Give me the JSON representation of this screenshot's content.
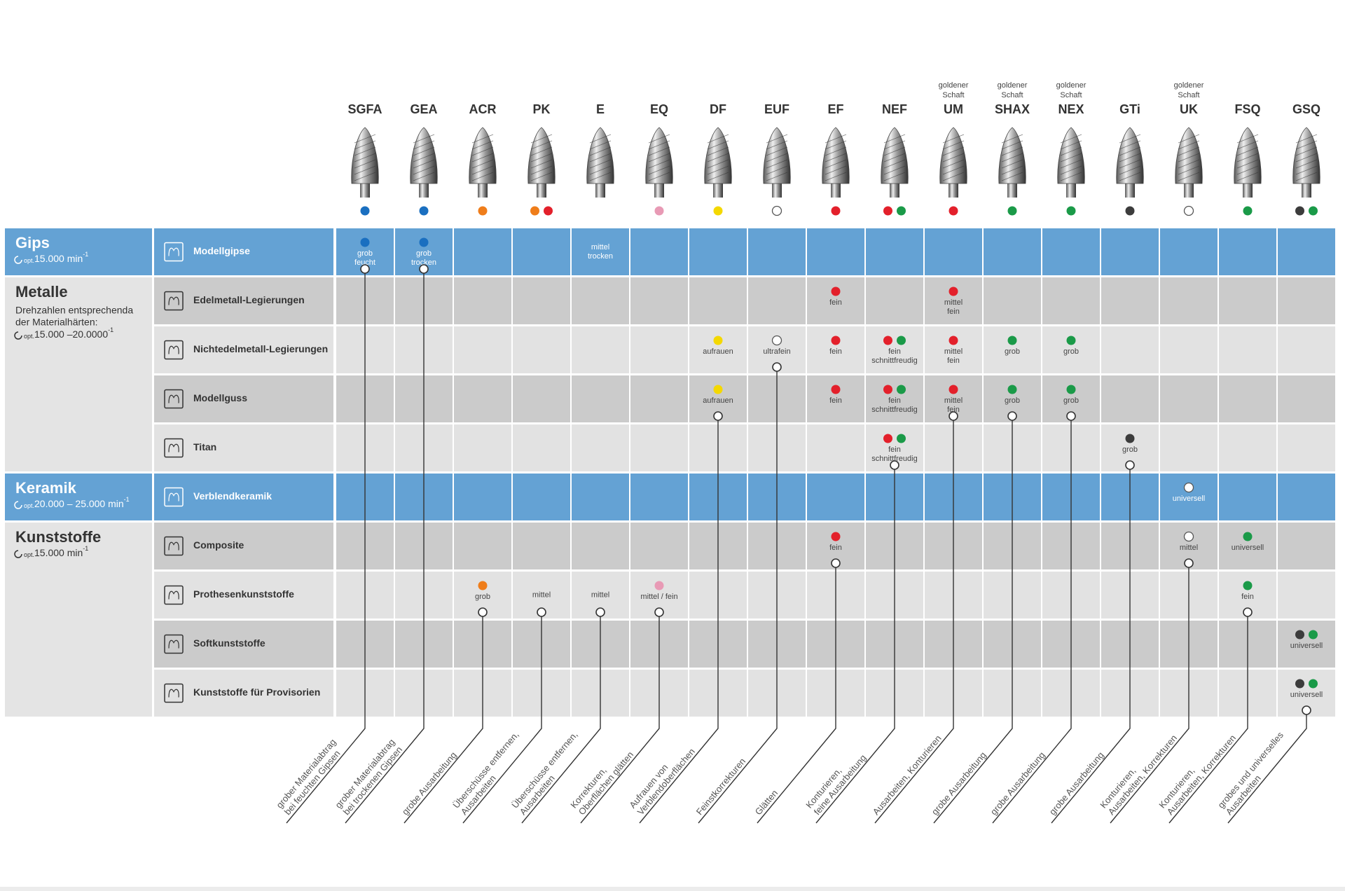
{
  "columns": [
    {
      "name": "SGFA",
      "top": null,
      "dots": [
        "#1a6fc0"
      ],
      "description": [
        "grober Materialabtrag",
        "bei feuchten Gipsen"
      ]
    },
    {
      "name": "GEA",
      "top": null,
      "dots": [
        "#1a6fc0"
      ],
      "description": [
        "grober Materialabtrag",
        "bei trockenen Gipsen"
      ]
    },
    {
      "name": "ACR",
      "top": null,
      "dots": [
        "#ef7d1a"
      ],
      "description": [
        "grobe Ausarbeitung"
      ]
    },
    {
      "name": "PK",
      "top": null,
      "dots": [
        "#ef7d1a",
        "#e3202b"
      ],
      "description": [
        "Überschüsse entfernen,",
        "Ausarbeiten"
      ]
    },
    {
      "name": "E",
      "top": null,
      "dots": [],
      "description": [
        "Überschüsse entfernen,",
        "Ausarbeiten"
      ]
    },
    {
      "name": "EQ",
      "top": null,
      "dots": [
        "#e89ab5"
      ],
      "description": [
        "Korrekturen,",
        "Oberflächen glätten"
      ]
    },
    {
      "name": "DF",
      "top": null,
      "dots": [
        "#f4d800"
      ],
      "description": [
        "Aufrauen von",
        "Verblendoberflächen"
      ]
    },
    {
      "name": "EUF",
      "top": null,
      "dots": [
        "#ffffff"
      ],
      "description": [
        "Feinstkorrekturen"
      ]
    },
    {
      "name": "EF",
      "top": null,
      "dots": [
        "#e3202b"
      ],
      "description": [
        "Glätten"
      ]
    },
    {
      "name": "NEF",
      "top": null,
      "dots": [
        "#e3202b",
        "#1a9a48"
      ],
      "description": [
        "Konturieren,",
        "feine Ausarbeitung"
      ]
    },
    {
      "name": "UM",
      "top": [
        "goldener",
        "Schaft"
      ],
      "dots": [
        "#e3202b"
      ],
      "description": [
        "Ausarbeiten, Konturieren"
      ]
    },
    {
      "name": "SHAX",
      "top": [
        "goldener",
        "Schaft"
      ],
      "dots": [
        "#1a9a48"
      ],
      "description": [
        "grobe Ausarbeitung"
      ]
    },
    {
      "name": "NEX",
      "top": [
        "goldener",
        "Schaft"
      ],
      "dots": [
        "#1a9a48"
      ],
      "description": [
        "grobe Ausarbeitung"
      ]
    },
    {
      "name": "GTi",
      "top": null,
      "dots": [
        "#3c3c3c"
      ],
      "description": [
        "grobe Ausarbeitung"
      ]
    },
    {
      "name": "UK",
      "top": [
        "goldener",
        "Schaft"
      ],
      "dots": [
        "#ffffff"
      ],
      "description": [
        "Konturieren,",
        "Ausarbeiten, Korrekturen"
      ]
    },
    {
      "name": "FSQ",
      "top": null,
      "dots": [
        "#1a9a48"
      ],
      "description": [
        "Konturieren,",
        "Ausarbeiten, Korrekturen"
      ]
    },
    {
      "name": "GSQ",
      "top": null,
      "dots": [
        "#3c3c3c",
        "#1a9a48"
      ],
      "description": [
        "grobes und universelles",
        "Ausarbeiten"
      ]
    }
  ],
  "groups": [
    {
      "title": "Gips",
      "color": "#64a2d4",
      "note": null,
      "speed": {
        "prefix": "opt.",
        "value": "15.000 min",
        "sup": "-1"
      },
      "rows": [
        {
          "name": "Modellgipse",
          "cells": [
            {
              "dots": [
                "#1a6fc0"
              ],
              "text": [
                "grob",
                "feucht"
              ]
            },
            {
              "dots": [
                "#1a6fc0"
              ],
              "text": [
                "grob",
                "trocken"
              ]
            },
            null,
            null,
            {
              "dots": [],
              "text": [
                "mittel",
                "trocken"
              ]
            },
            null,
            null,
            null,
            null,
            null,
            null,
            null,
            null,
            null,
            null,
            null,
            null
          ]
        }
      ]
    },
    {
      "title": "Metalle",
      "color": "#e4e4e4",
      "note": [
        "Drehzahlen entsprechenda",
        "der Materialhärten:"
      ],
      "speed": {
        "prefix": "opt.",
        "value": "15.000 –20.0000",
        "sup": "-1"
      },
      "rows": [
        {
          "name": "Edelmetall-Legierungen",
          "cells": [
            null,
            null,
            null,
            null,
            null,
            null,
            null,
            null,
            {
              "dots": [
                "#e3202b"
              ],
              "text": [
                "fein"
              ]
            },
            null,
            {
              "dots": [
                "#e3202b"
              ],
              "text": [
                "mittel",
                "fein"
              ]
            },
            null,
            null,
            null,
            null,
            null,
            null
          ]
        },
        {
          "name": "Nichtedelmetall-Legierungen",
          "cells": [
            null,
            null,
            null,
            null,
            null,
            null,
            {
              "dots": [
                "#f4d800"
              ],
              "text": [
                "aufrauen"
              ]
            },
            {
              "dots": [
                "#ffffff"
              ],
              "text": [
                "ultrafein"
              ]
            },
            {
              "dots": [
                "#e3202b"
              ],
              "text": [
                "fein"
              ]
            },
            {
              "dots": [
                "#e3202b",
                "#1a9a48"
              ],
              "text": [
                "fein",
                "schnittfreudig"
              ]
            },
            {
              "dots": [
                "#e3202b"
              ],
              "text": [
                "mittel",
                "fein"
              ]
            },
            {
              "dots": [
                "#1a9a48"
              ],
              "text": [
                "grob"
              ]
            },
            {
              "dots": [
                "#1a9a48"
              ],
              "text": [
                "grob"
              ]
            },
            null,
            null,
            null,
            null
          ]
        },
        {
          "name": "Modellguss",
          "cells": [
            null,
            null,
            null,
            null,
            null,
            null,
            {
              "dots": [
                "#f4d800"
              ],
              "text": [
                "aufrauen"
              ]
            },
            null,
            {
              "dots": [
                "#e3202b"
              ],
              "text": [
                "fein"
              ]
            },
            {
              "dots": [
                "#e3202b",
                "#1a9a48"
              ],
              "text": [
                "fein",
                "schnittfreudig"
              ]
            },
            {
              "dots": [
                "#e3202b"
              ],
              "text": [
                "mittel",
                "fein"
              ]
            },
            {
              "dots": [
                "#1a9a48"
              ],
              "text": [
                "grob"
              ]
            },
            {
              "dots": [
                "#1a9a48"
              ],
              "text": [
                "grob"
              ]
            },
            null,
            null,
            null,
            null
          ]
        },
        {
          "name": "Titan",
          "cells": [
            null,
            null,
            null,
            null,
            null,
            null,
            null,
            null,
            null,
            {
              "dots": [
                "#e3202b",
                "#1a9a48"
              ],
              "text": [
                "fein",
                "schnittfreudig"
              ]
            },
            null,
            null,
            null,
            {
              "dots": [
                "#3c3c3c"
              ],
              "text": [
                "grob"
              ]
            },
            null,
            null,
            null
          ]
        }
      ]
    },
    {
      "title": "Keramik",
      "color": "#64a2d4",
      "note": null,
      "speed": {
        "prefix": "opt.",
        "value": "20.000 – 25.000 min",
        "sup": "-1"
      },
      "rows": [
        {
          "name": "Verblendkeramik",
          "cells": [
            null,
            null,
            null,
            null,
            null,
            null,
            null,
            null,
            null,
            null,
            null,
            null,
            null,
            null,
            {
              "dots": [
                "#ffffff"
              ],
              "text": [
                "universell"
              ]
            },
            null,
            null
          ]
        }
      ]
    },
    {
      "title": "Kunststoffe",
      "color": "#e4e4e4",
      "note": null,
      "speed": {
        "prefix": "opt.",
        "value": "15.000 min",
        "sup": "-1"
      },
      "rows": [
        {
          "name": "Composite",
          "cells": [
            null,
            null,
            null,
            null,
            null,
            null,
            null,
            null,
            {
              "dots": [
                "#e3202b"
              ],
              "text": [
                "fein"
              ]
            },
            null,
            null,
            null,
            null,
            null,
            {
              "dots": [
                "#ffffff"
              ],
              "text": [
                "mittel"
              ]
            },
            {
              "dots": [
                "#1a9a48"
              ],
              "text": [
                "universell"
              ]
            },
            null
          ]
        },
        {
          "name": "Prothesenkunststoffe",
          "cells": [
            null,
            null,
            {
              "dots": [
                "#ef7d1a"
              ],
              "text": [
                "grob"
              ]
            },
            {
              "dots": [],
              "text": [
                "mittel"
              ]
            },
            {
              "dots": [],
              "text": [
                "mittel"
              ]
            },
            {
              "dots": [
                "#e89ab5"
              ],
              "text": [
                "mittel / fein"
              ]
            },
            null,
            null,
            null,
            null,
            null,
            null,
            null,
            null,
            null,
            {
              "dots": [
                "#1a9a48"
              ],
              "text": [
                "fein"
              ]
            },
            null
          ]
        },
        {
          "name": "Softkunststoffe",
          "cells": [
            null,
            null,
            null,
            null,
            null,
            null,
            null,
            null,
            null,
            null,
            null,
            null,
            null,
            null,
            null,
            null,
            {
              "dots": [
                "#3c3c3c",
                "#1a9a48"
              ],
              "text": [
                "universell"
              ]
            }
          ]
        },
        {
          "name": "Kunststoffe für Provisorien",
          "cells": [
            null,
            null,
            null,
            null,
            null,
            null,
            null,
            null,
            null,
            null,
            null,
            null,
            null,
            null,
            null,
            null,
            {
              "dots": [
                "#3c3c3c",
                "#1a9a48"
              ],
              "text": [
                "universell"
              ]
            }
          ]
        }
      ]
    }
  ]
}
